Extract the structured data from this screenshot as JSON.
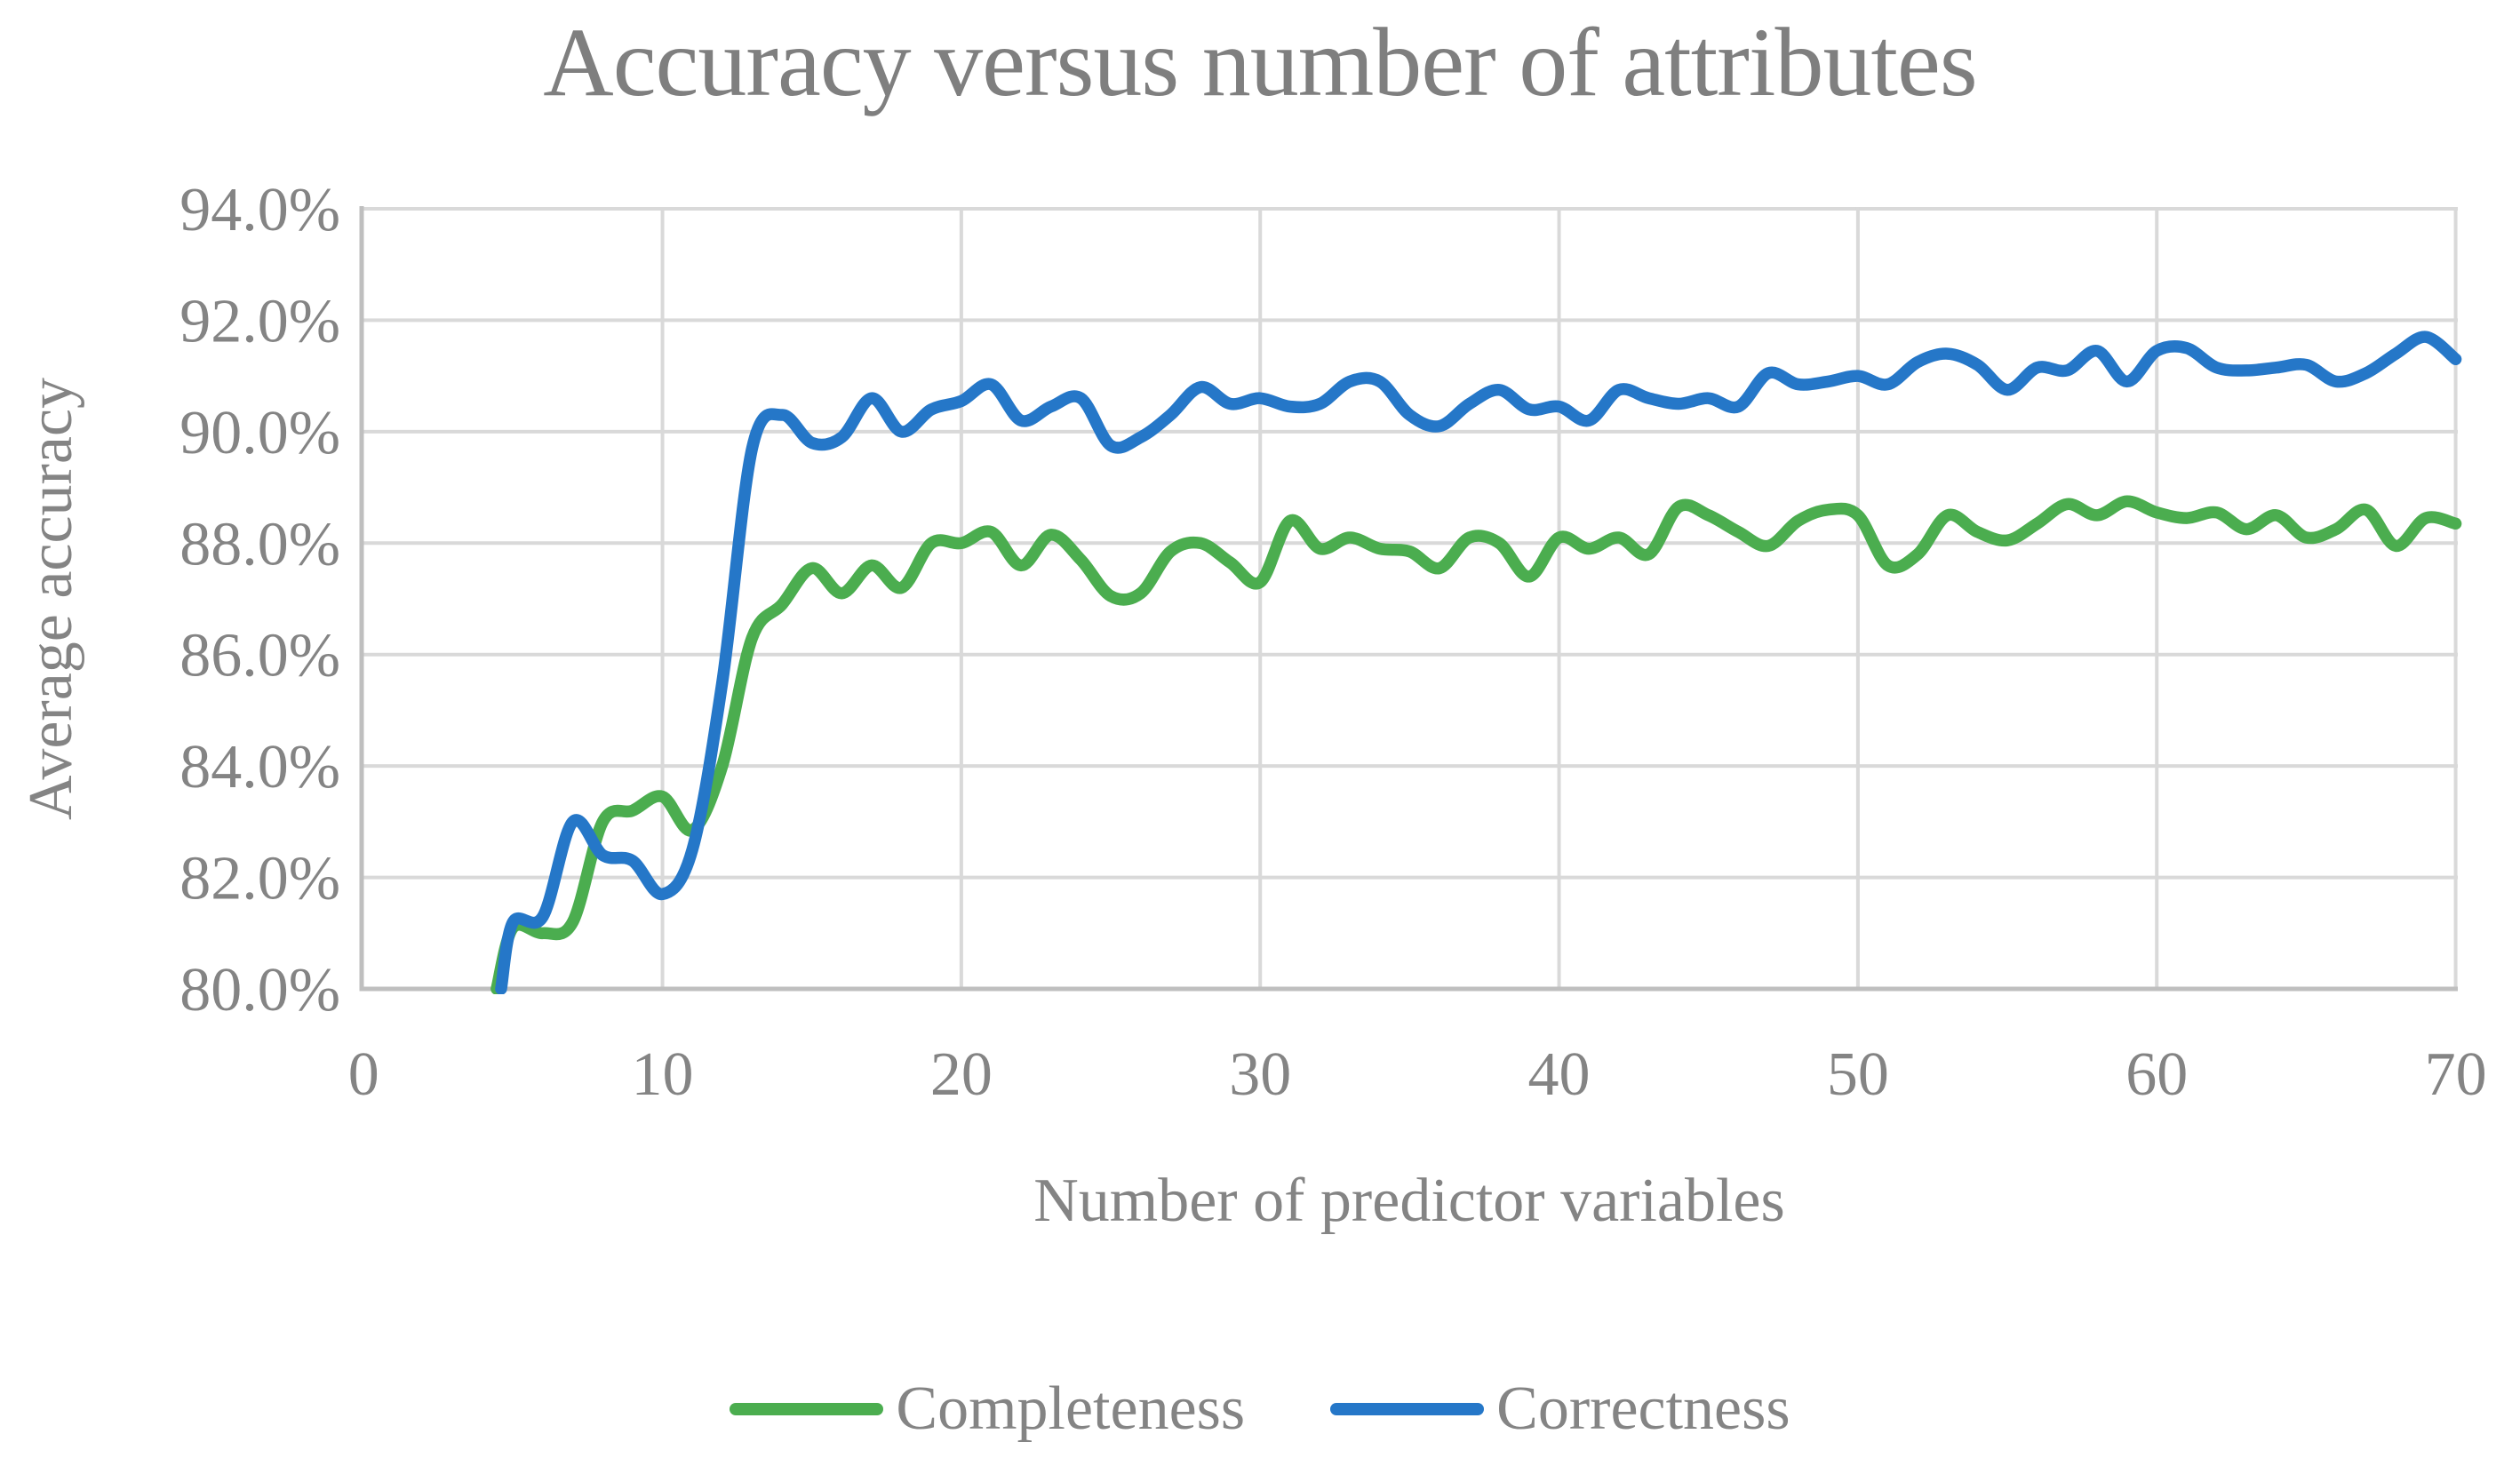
{
  "title": "Accuracy versus number of attributes",
  "y_axis": {
    "title": "Average accuracy",
    "tick_labels": [
      "94.0%",
      "92.0%",
      "90.0%",
      "88.0%",
      "86.0%",
      "84.0%",
      "82.0%",
      "80.0%"
    ]
  },
  "x_axis": {
    "title": "Number of predictor variables",
    "tick_labels": [
      "0",
      "10",
      "20",
      "30",
      "40",
      "50",
      "60",
      "70"
    ]
  },
  "legend": [
    {
      "label": "Completeness",
      "color": "#4bad4f"
    },
    {
      "label": "Correctness",
      "color": "#2577c8"
    }
  ],
  "colors": {
    "completeness_green": "#4bad4f",
    "correctness_blue": "#2577c8",
    "gridline": "#d9d9d9",
    "axis_line": "#bfbfbf",
    "text_gray": "#848484",
    "title_gray": "#7f7f7f",
    "background": "#ffffff"
  },
  "chart_data": {
    "type": "line",
    "title": "Accuracy versus number of attributes",
    "xlabel": "Number of predictor variables",
    "ylabel": "Average accuracy",
    "xlim": [
      0,
      70
    ],
    "ylim": [
      80,
      94
    ],
    "x_ticks": [
      0,
      10,
      20,
      30,
      40,
      50,
      60,
      70
    ],
    "y_ticks": [
      80,
      82,
      84,
      86,
      88,
      90,
      92,
      94
    ],
    "y_tick_format": "percent_one_decimal",
    "grid": true,
    "line_style": "smoothed",
    "legend_position": "bottom",
    "series": [
      {
        "name": "Completeness",
        "color": "#4bad4f",
        "x": [
          4.45,
          5,
          6,
          7,
          8,
          9,
          10,
          11,
          12,
          13,
          14,
          15,
          16,
          17,
          18,
          19,
          20,
          21,
          22,
          23,
          24,
          25,
          26,
          27,
          28,
          29,
          30,
          31,
          32,
          33,
          34,
          35,
          36,
          37,
          38,
          39,
          40,
          41,
          42,
          43,
          44,
          45,
          46,
          47,
          48,
          49,
          50,
          51,
          52,
          53,
          54,
          55,
          56,
          57,
          58,
          59,
          60,
          61,
          62,
          63,
          64,
          65,
          66,
          67,
          68,
          69,
          70
        ],
        "values": [
          80.0,
          81.1,
          81.0,
          81.2,
          83.0,
          83.2,
          83.45,
          82.85,
          84.0,
          86.3,
          86.9,
          87.55,
          87.1,
          87.6,
          87.2,
          88.0,
          88.0,
          88.2,
          87.6,
          88.15,
          87.7,
          87.05,
          87.1,
          87.85,
          88.0,
          87.65,
          87.3,
          88.4,
          87.9,
          88.1,
          87.9,
          87.85,
          87.55,
          88.1,
          88.0,
          87.4,
          88.1,
          87.9,
          88.1,
          87.8,
          88.65,
          88.5,
          88.2,
          87.95,
          88.4,
          88.6,
          88.5,
          87.6,
          87.8,
          88.5,
          88.2,
          88.05,
          88.35,
          88.7,
          88.5,
          88.75,
          88.55,
          88.45,
          88.55,
          88.25,
          88.5,
          88.1,
          88.25,
          88.6,
          87.95,
          88.45,
          88.35
        ]
      },
      {
        "name": "Correctness",
        "color": "#2577c8",
        "x": [
          4.6,
          5,
          6,
          7,
          8,
          9,
          10,
          11,
          12,
          13,
          14,
          15,
          16,
          17,
          18,
          19,
          20,
          21,
          22,
          23,
          24,
          25,
          26,
          27,
          28,
          29,
          30,
          31,
          32,
          33,
          34,
          35,
          36,
          37,
          38,
          39,
          40,
          41,
          42,
          43,
          44,
          45,
          46,
          47,
          48,
          49,
          50,
          51,
          52,
          53,
          54,
          55,
          56,
          57,
          58,
          59,
          60,
          61,
          62,
          63,
          64,
          65,
          66,
          67,
          68,
          69,
          70
        ],
        "values": [
          80.0,
          81.2,
          81.3,
          83.0,
          82.4,
          82.3,
          81.7,
          82.5,
          85.5,
          89.7,
          90.3,
          89.8,
          89.9,
          90.6,
          90.0,
          90.4,
          90.55,
          90.85,
          90.2,
          90.45,
          90.6,
          89.75,
          89.9,
          90.3,
          90.8,
          90.5,
          90.6,
          90.45,
          90.5,
          90.9,
          90.9,
          90.3,
          90.1,
          90.5,
          90.75,
          90.4,
          90.45,
          90.2,
          90.75,
          90.6,
          90.5,
          90.6,
          90.45,
          91.05,
          90.85,
          90.9,
          91.0,
          90.85,
          91.25,
          91.4,
          91.2,
          90.75,
          91.15,
          91.1,
          91.45,
          90.9,
          91.45,
          91.5,
          91.15,
          91.1,
          91.15,
          91.2,
          90.9,
          91.05,
          91.4,
          91.7,
          91.3
        ]
      }
    ]
  }
}
